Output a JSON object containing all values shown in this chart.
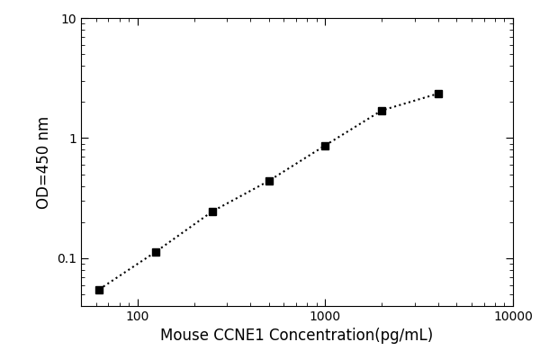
{
  "x": [
    62.5,
    125,
    250,
    500,
    1000,
    2000,
    4000
  ],
  "y": [
    0.055,
    0.113,
    0.245,
    0.44,
    0.87,
    1.7,
    2.35
  ],
  "xlabel": "Mouse CCNE1 Concentration(pg/mL)",
  "ylabel": "OD=450 nm",
  "xlim": [
    50,
    10000
  ],
  "ylim": [
    0.04,
    10
  ],
  "line_color": "#000000",
  "marker": "s",
  "marker_color": "#000000",
  "marker_size": 6,
  "line_style": ":",
  "line_width": 1.5,
  "background_color": "#ffffff",
  "title": "",
  "xlabel_fontsize": 12,
  "ylabel_fontsize": 12,
  "tick_fontsize": 10,
  "yticks": [
    0.1,
    1,
    10
  ],
  "ytick_labels": [
    "0.1",
    "1",
    "10"
  ],
  "xticks": [
    100,
    1000,
    10000
  ],
  "xtick_labels": [
    "100",
    "1000",
    "10000"
  ]
}
